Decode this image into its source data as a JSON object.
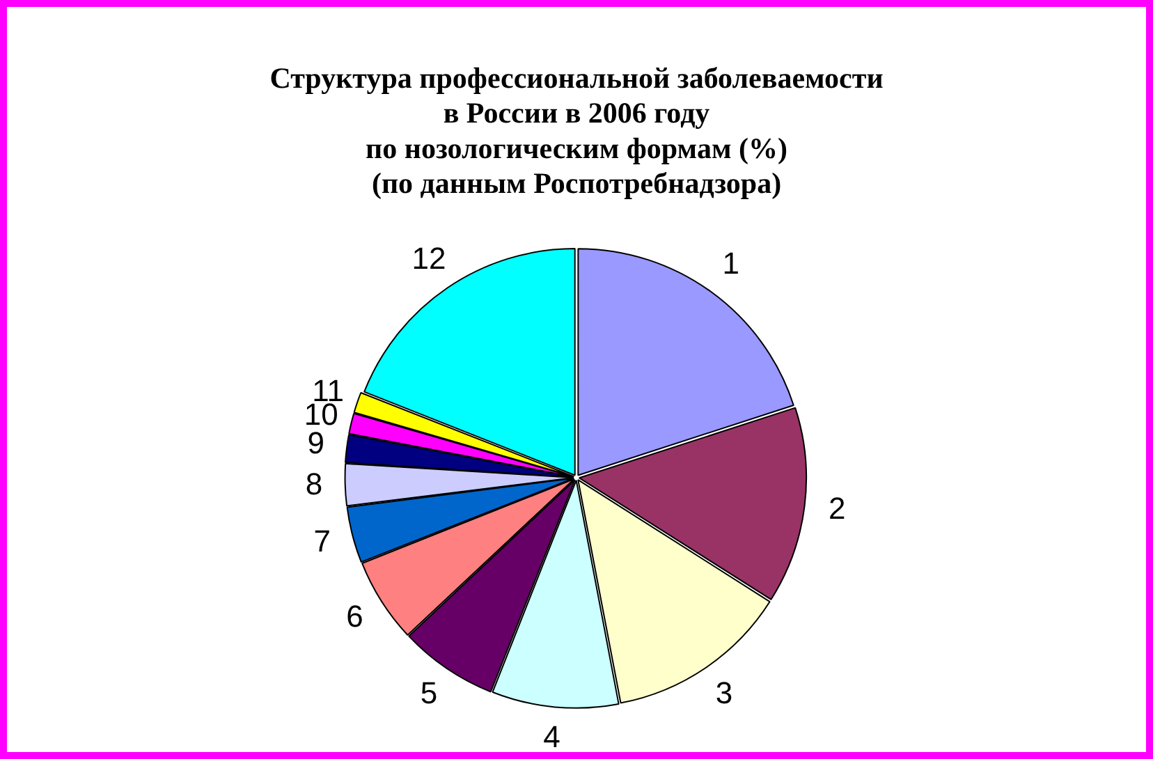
{
  "chart_data": {
    "type": "pie",
    "title": "Структура профессиональной заболеваемости\nв России в 2006 году\nпо нозологическим формам (%)\n(по данным Роспотребнадзора)",
    "categories": [
      "1",
      "2",
      "3",
      "4",
      "5",
      "6",
      "7",
      "8",
      "9",
      "10",
      "11",
      "12"
    ],
    "values": [
      20,
      14,
      13,
      9,
      7,
      6,
      4,
      3,
      2,
      1.5,
      1.5,
      19
    ],
    "colors": [
      "#9999ff",
      "#993366",
      "#ffffcc",
      "#ccffff",
      "#660066",
      "#ff8080",
      "#0066cc",
      "#ccccff",
      "#000080",
      "#ff00ff",
      "#ffff00",
      "#00ffff"
    ],
    "legend": false
  }
}
